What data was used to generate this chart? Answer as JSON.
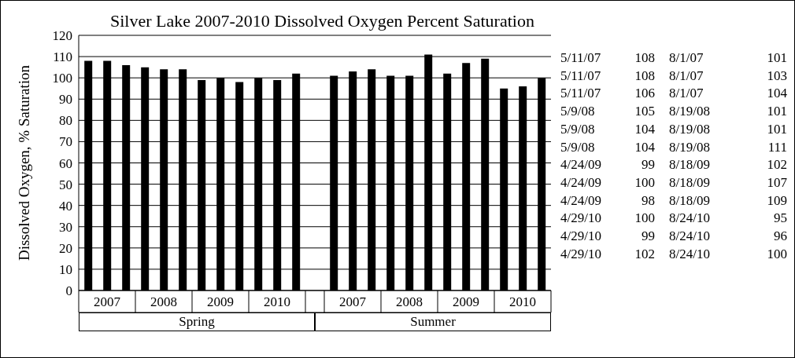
{
  "chart_data": {
    "type": "bar",
    "title": "Silver Lake 2007-2010 Dissolved Oxygen Percent Saturation",
    "ylabel": "Dissolved Oxygen, % Saturation",
    "categories": [
      null,
      "2007",
      null,
      null,
      "2008",
      null,
      null,
      "2009",
      null,
      null,
      "2010",
      null,
      null,
      null,
      "2007",
      null,
      null,
      "2008",
      null,
      null,
      "2009",
      null,
      null,
      "2010",
      null
    ],
    "values": [
      108,
      108,
      106,
      105,
      104,
      104,
      99,
      100,
      98,
      100,
      99,
      102,
      null,
      101,
      103,
      104,
      101,
      101,
      111,
      102,
      107,
      109,
      95,
      96,
      100
    ],
    "color": "#000000",
    "ylim": [
      0,
      120
    ],
    "yticks": [
      0,
      10,
      20,
      30,
      40,
      50,
      60,
      70,
      80,
      90,
      100,
      110,
      120
    ],
    "grid": "y",
    "annotations": [
      "Spring",
      "Summer",
      "5/11/07",
      "108",
      "8/1/07",
      "101",
      "5/11/07",
      "108",
      "8/1/07",
      "103",
      "5/11/07",
      "106",
      "8/1/07",
      "104",
      "5/9/08",
      "105",
      "8/19/08",
      "101",
      "5/9/08",
      "104",
      "8/19/08",
      "101",
      "5/9/08",
      "104",
      "8/19/08",
      "111",
      "4/24/09",
      "99",
      "8/18/09",
      "102",
      "4/24/09",
      "100",
      "8/18/09",
      "107",
      "4/24/09",
      "98",
      "8/18/09",
      "109",
      "4/29/10",
      "100",
      "8/24/10",
      "95",
      "4/29/10",
      "99",
      "8/24/10",
      "96",
      "4/29/10",
      "102",
      "8/24/10",
      "100"
    ]
  }
}
